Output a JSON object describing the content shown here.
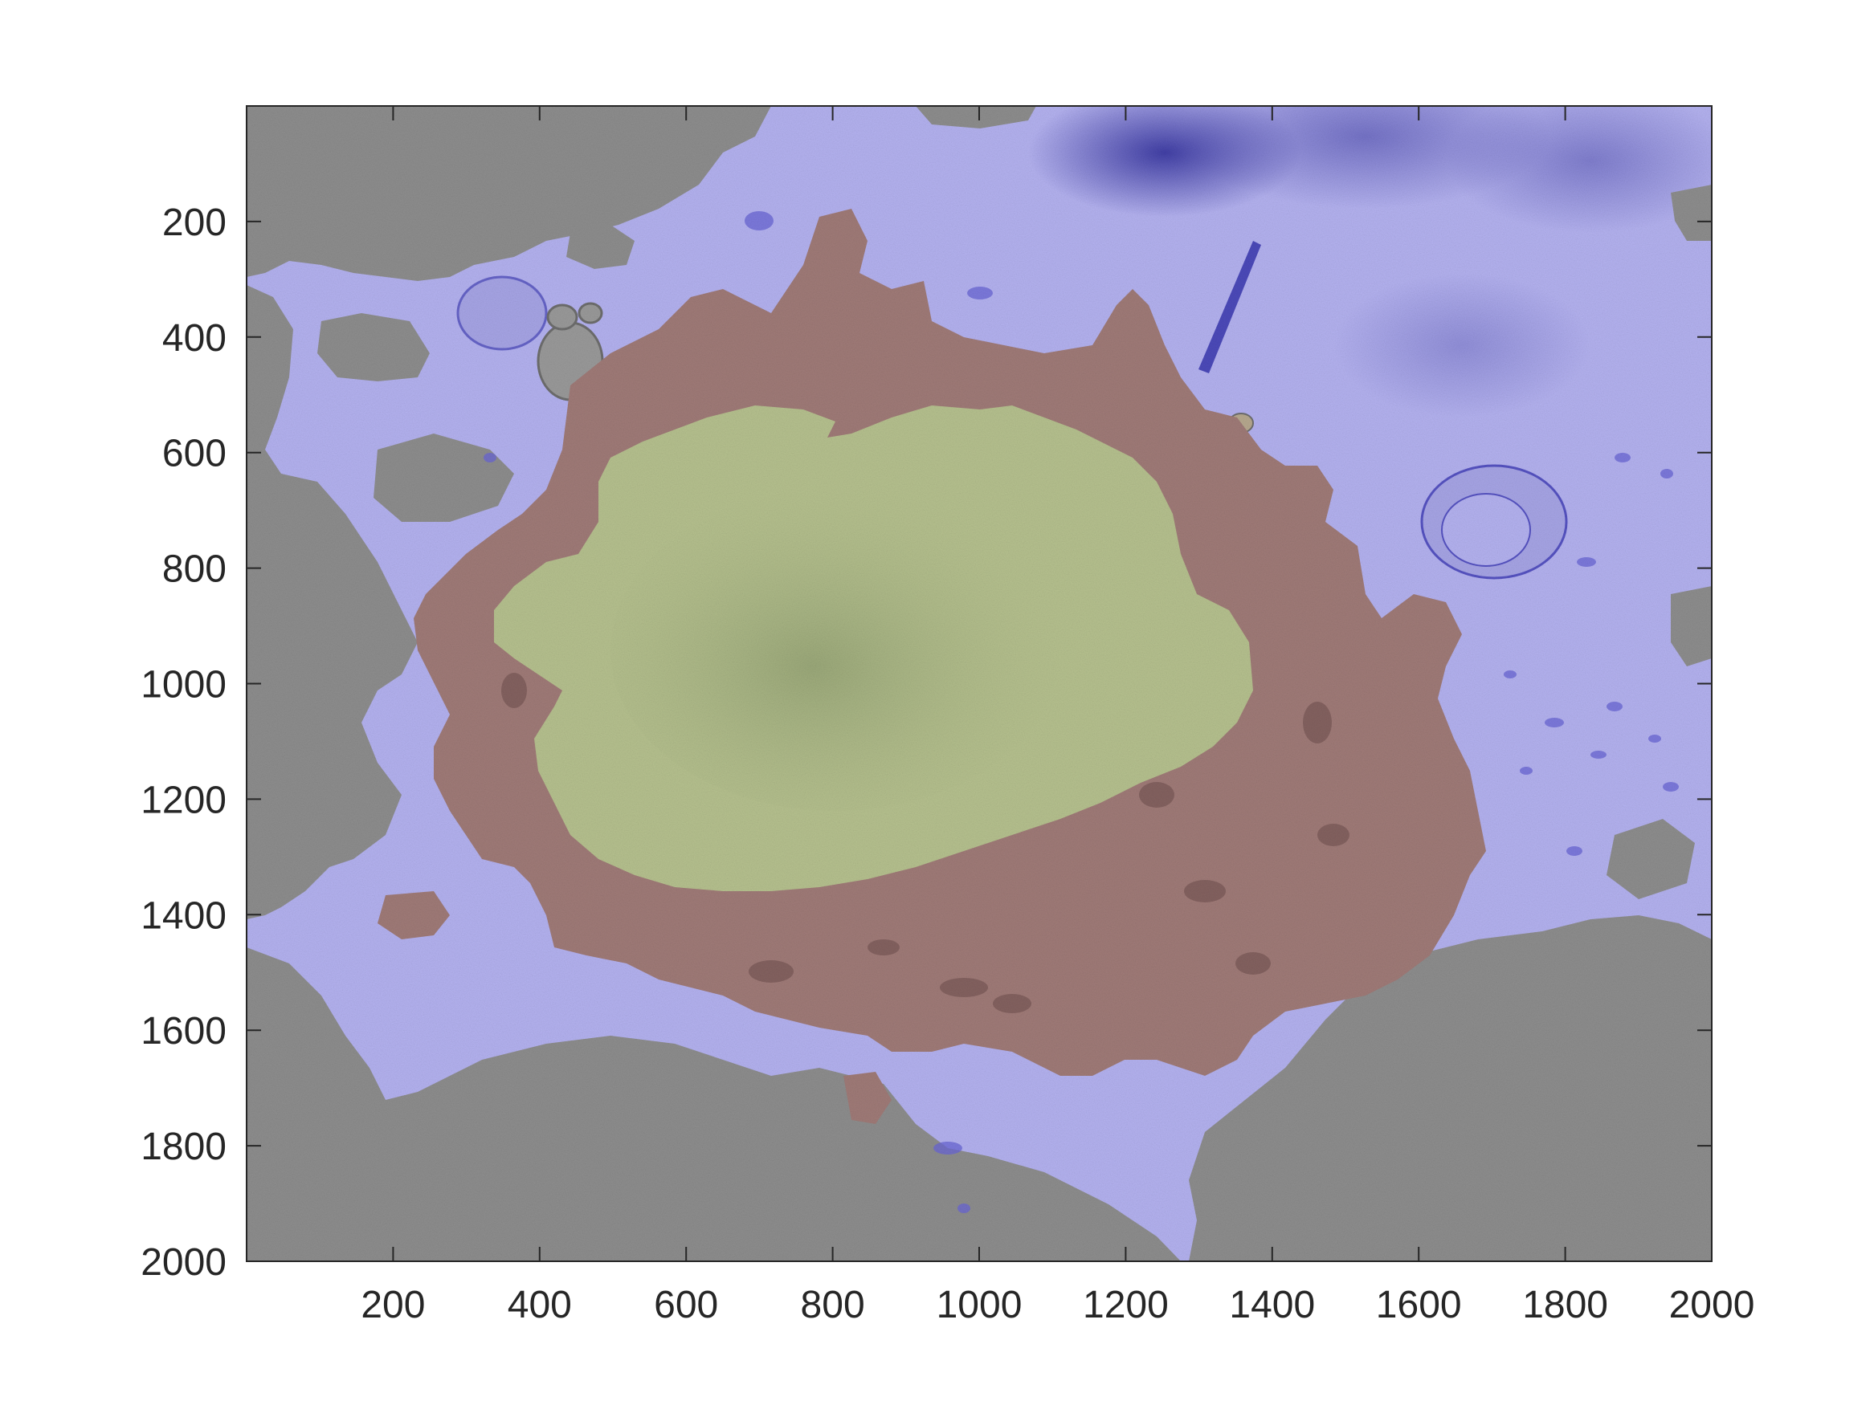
{
  "figure": {
    "type": "segmented-electron-micrograph",
    "image_extent": {
      "x": [
        1,
        2000
      ],
      "y": [
        1,
        2000
      ]
    },
    "y_axis_direction": "reversed",
    "x_axis": {
      "lim": [
        0,
        2000
      ],
      "ticks": [
        200,
        400,
        600,
        800,
        1000,
        1200,
        1400,
        1600,
        1800,
        2000
      ]
    },
    "y_axis": {
      "lim": [
        0,
        2000
      ],
      "ticks": [
        200,
        400,
        600,
        800,
        1000,
        1200,
        1400,
        1600,
        1800,
        2000
      ]
    },
    "x_tick_labels": [
      "200",
      "400",
      "600",
      "800",
      "1000",
      "1200",
      "1400",
      "1600",
      "1800",
      "2000"
    ],
    "y_tick_labels": [
      "200",
      "400",
      "600",
      "800",
      "1000",
      "1200",
      "1400",
      "1600",
      "1800",
      "2000"
    ],
    "overlay_colors": {
      "background": "#b4b2f0",
      "background_dark": "#2e2c9a",
      "cell": "#a07b78",
      "nucleus": "#b6c18f",
      "tissue": "#8e8e8e"
    },
    "grid": false
  }
}
